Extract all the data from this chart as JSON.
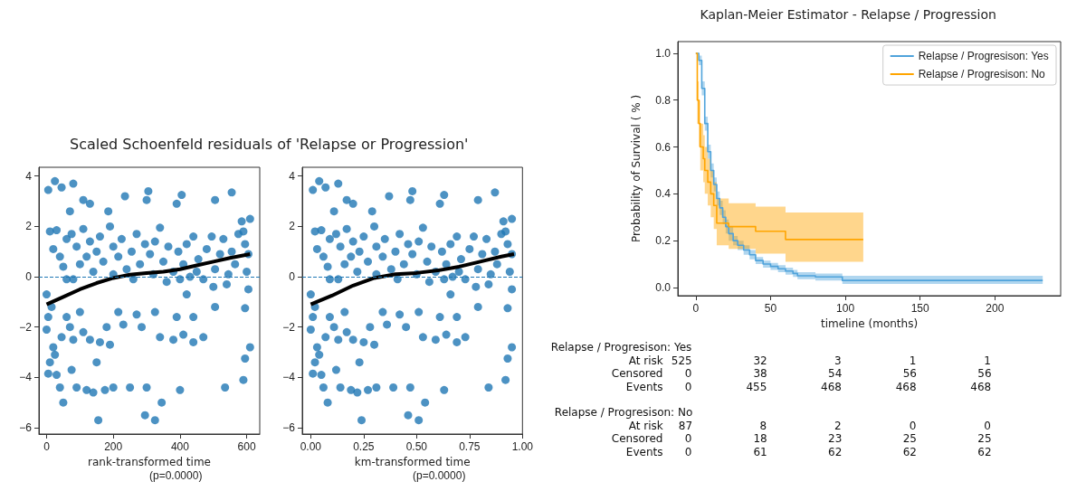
{
  "chart_data": [
    {
      "type": "scatter",
      "title": "Scaled Schoenfeld residuals of 'Relapse or Progression'",
      "xlabel": "rank-transformed time",
      "annotations": [
        "(p=0.0000)"
      ],
      "marker": "circle",
      "grid": false,
      "xlim": [
        -23,
        639
      ],
      "xticks": [
        0,
        200,
        400,
        600
      ],
      "ylim": [
        -6.25,
        4.35
      ],
      "yticks": [
        {
          "value": -6,
          "label": "−6"
        },
        {
          "value": -4,
          "label": "−4"
        },
        {
          "value": -2,
          "label": "−2"
        },
        0,
        2,
        4
      ],
      "ref_lines": [
        {
          "axis": "y",
          "value": 0,
          "color": "#1f77b4",
          "line_style": "dashed"
        }
      ],
      "series": [
        {
          "color": "#1f77b4",
          "x": [
            5,
            25,
            45,
            80,
            70,
            110,
            130,
            185,
            235,
            305,
            300,
            390,
            405,
            505,
            555,
            10,
            30,
            20,
            40,
            60,
            75,
            90,
            100,
            110,
            130,
            150,
            160,
            170,
            190,
            200,
            215,
            225,
            240,
            255,
            270,
            280,
            295,
            310,
            325,
            340,
            350,
            365,
            380,
            395,
            410,
            420,
            430,
            440,
            455,
            470,
            480,
            495,
            505,
            520,
            530,
            545,
            555,
            565,
            575,
            585,
            595,
            605,
            610,
            600,
            590,
            140,
            120,
            50,
            60,
            80,
            200,
            260,
            320,
            360,
            400,
            450,
            500,
            540,
            0,
            5,
            0,
            15,
            20,
            10,
            25,
            5,
            30,
            40,
            50,
            45,
            60,
            70,
            80,
            75,
            90,
            100,
            110,
            120,
            130,
            140,
            150,
            155,
            160,
            175,
            180,
            190,
            200,
            215,
            230,
            250,
            270,
            285,
            295,
            300,
            325,
            325,
            340,
            345,
            380,
            390,
            400,
            410,
            420,
            440,
            440,
            470,
            505,
            535,
            590,
            595,
            595,
            605,
            610
          ],
          "values": [
            3.45,
            3.8,
            3.55,
            3.7,
            2.6,
            3.05,
            2.9,
            2.6,
            3.2,
            3.4,
            3.05,
            2.9,
            3.25,
            3.05,
            3.35,
            1.8,
            1.85,
            1.1,
            0.8,
            1.5,
            1.7,
            1.2,
            0.5,
            1.9,
            1.4,
            1.0,
            1.6,
            0.6,
            2.0,
            1.2,
            0.8,
            1.5,
            0.3,
            1.0,
            1.7,
            0.5,
            1.3,
            0.9,
            1.4,
            1.95,
            0.6,
            1.2,
            0.2,
            1.0,
            0.5,
            1.3,
            0.0,
            1.6,
            0.7,
            -0.1,
            1.1,
            1.6,
            0.3,
            0.9,
            1.5,
            0.1,
            1.0,
            0.5,
            1.7,
            2.2,
            1.3,
            0.9,
            2.3,
            0.2,
            1.8,
            0.2,
            0.8,
            0.4,
            -0.1,
            -0.1,
            0.1,
            -0.1,
            0.1,
            -0.2,
            -0.1,
            0.2,
            -0.4,
            -0.3,
            -0.7,
            -1.6,
            -2.1,
            -1.2,
            -2.8,
            -3.4,
            -3.1,
            -3.85,
            -3.9,
            -4.4,
            -5.0,
            -2.4,
            -1.6,
            -2.0,
            -2.5,
            -3.7,
            -4.4,
            -1.4,
            -2.2,
            -4.5,
            -2.5,
            -4.6,
            -3.4,
            -5.7,
            -2.6,
            -4.5,
            -2.0,
            -2.7,
            -4.4,
            -1.4,
            -1.9,
            -4.4,
            -1.5,
            -2.0,
            -5.5,
            -4.4,
            -1.4,
            -5.7,
            -2.4,
            -5.0,
            -2.5,
            -1.6,
            -4.5,
            -2.3,
            -0.7,
            -1.6,
            -2.6,
            -2.4,
            -1.2,
            -4.4,
            -4.1,
            -3.25,
            -1.25,
            -0.5,
            -2.8
          ]
        },
        {
          "type": "line",
          "marker": "none",
          "color": "#000000",
          "x": [
            0,
            50,
            100,
            150,
            200,
            250,
            300,
            350,
            400,
            450,
            500,
            550,
            610
          ],
          "values": [
            -1.1,
            -0.8,
            -0.5,
            -0.25,
            -0.05,
            0.08,
            0.15,
            0.2,
            0.3,
            0.45,
            0.6,
            0.75,
            0.9
          ]
        }
      ]
    },
    {
      "type": "scatter",
      "xlabel": "km-transformed time",
      "annotations": [
        "(p=0.0000)"
      ],
      "marker": "circle",
      "grid": false,
      "xlim": [
        -0.04,
        1.0
      ],
      "xticks": [
        {
          "value": 0,
          "label": "0.00"
        },
        {
          "value": 0.25,
          "label": "0.25"
        },
        {
          "value": 0.5,
          "label": "0.50"
        },
        {
          "value": 0.75,
          "label": "0.75"
        },
        {
          "value": 1,
          "label": "1.00"
        }
      ],
      "ylim": [
        -6.25,
        4.35
      ],
      "yticks": [
        {
          "value": -6,
          "label": "−6"
        },
        {
          "value": -4,
          "label": "−4"
        },
        {
          "value": -2,
          "label": "−2"
        },
        0,
        2,
        4
      ],
      "ref_lines": [
        {
          "axis": "y",
          "value": 0,
          "color": "#1f77b4",
          "line_style": "dashed"
        }
      ],
      "series": [
        {
          "color": "#1f77b4",
          "x": [
            0.01,
            0.04,
            0.07,
            0.13,
            0.11,
            0.17,
            0.2,
            0.29,
            0.37,
            0.48,
            0.47,
            0.61,
            0.63,
            0.79,
            0.87,
            0.02,
            0.05,
            0.03,
            0.06,
            0.09,
            0.12,
            0.14,
            0.16,
            0.17,
            0.2,
            0.23,
            0.25,
            0.27,
            0.3,
            0.31,
            0.34,
            0.35,
            0.38,
            0.4,
            0.42,
            0.44,
            0.46,
            0.48,
            0.51,
            0.53,
            0.55,
            0.57,
            0.59,
            0.62,
            0.64,
            0.66,
            0.67,
            0.69,
            0.71,
            0.73,
            0.75,
            0.77,
            0.79,
            0.81,
            0.83,
            0.85,
            0.87,
            0.88,
            0.9,
            0.91,
            0.93,
            0.95,
            0.95,
            0.94,
            0.92,
            0.22,
            0.19,
            0.08,
            0.09,
            0.13,
            0.31,
            0.41,
            0.5,
            0.56,
            0.63,
            0.7,
            0.78,
            0.84,
            0,
            0.01,
            0,
            0.02,
            0.03,
            0.02,
            0.04,
            0.01,
            0.05,
            0.06,
            0.08,
            0.07,
            0.09,
            0.11,
            0.13,
            0.12,
            0.14,
            0.16,
            0.17,
            0.19,
            0.2,
            0.22,
            0.23,
            0.24,
            0.25,
            0.27,
            0.28,
            0.3,
            0.31,
            0.34,
            0.36,
            0.39,
            0.42,
            0.45,
            0.46,
            0.47,
            0.51,
            0.51,
            0.53,
            0.54,
            0.59,
            0.61,
            0.63,
            0.64,
            0.66,
            0.69,
            0.69,
            0.73,
            0.79,
            0.84,
            0.92,
            0.93,
            0.93,
            0.95,
            0.95
          ],
          "values": [
            3.45,
            3.8,
            3.55,
            3.7,
            2.6,
            3.05,
            2.9,
            2.6,
            3.2,
            3.4,
            3.05,
            2.9,
            3.25,
            3.05,
            3.35,
            1.8,
            1.85,
            1.1,
            0.8,
            1.5,
            1.7,
            1.2,
            0.5,
            1.9,
            1.4,
            1.0,
            1.6,
            0.6,
            2.0,
            1.2,
            0.8,
            1.5,
            0.3,
            1.0,
            1.7,
            0.5,
            1.3,
            0.9,
            1.4,
            1.95,
            0.6,
            1.2,
            0.2,
            1.0,
            0.5,
            1.3,
            0.0,
            1.6,
            0.7,
            -0.1,
            1.1,
            1.6,
            0.3,
            0.9,
            1.5,
            0.1,
            1.0,
            0.5,
            1.7,
            2.2,
            1.3,
            0.9,
            2.3,
            0.2,
            1.8,
            0.2,
            0.8,
            0.4,
            -0.1,
            -0.1,
            0.1,
            -0.1,
            0.1,
            -0.2,
            -0.1,
            0.2,
            -0.4,
            -0.3,
            -0.7,
            -1.6,
            -2.1,
            -1.2,
            -2.8,
            -3.4,
            -3.1,
            -3.85,
            -3.9,
            -4.4,
            -5.0,
            -2.4,
            -1.6,
            -2.0,
            -2.5,
            -3.7,
            -4.4,
            -1.4,
            -2.2,
            -4.5,
            -2.5,
            -4.6,
            -3.4,
            -5.7,
            -2.6,
            -4.5,
            -2.0,
            -2.7,
            -4.4,
            -1.4,
            -1.9,
            -4.4,
            -1.5,
            -2.0,
            -5.5,
            -4.4,
            -1.4,
            -5.7,
            -2.4,
            -5.0,
            -2.5,
            -1.6,
            -4.5,
            -2.3,
            -0.7,
            -1.6,
            -2.6,
            -2.4,
            -1.2,
            -4.4,
            -4.1,
            -3.25,
            -1.25,
            -0.5,
            -2.8
          ]
        },
        {
          "type": "line",
          "marker": "none",
          "color": "#000000",
          "x": [
            0,
            0.1,
            0.2,
            0.3,
            0.4,
            0.5,
            0.6,
            0.7,
            0.8,
            0.9,
            0.96
          ],
          "values": [
            -1.1,
            -0.75,
            -0.35,
            -0.05,
            0.1,
            0.15,
            0.25,
            0.4,
            0.6,
            0.8,
            0.9
          ]
        }
      ]
    },
    {
      "type": "step",
      "title": "Kaplan-Meier Estimator - Relapse / Progression",
      "xlabel": "timeline (months)",
      "ylabel": "Probability of Survival ( % )",
      "grid": false,
      "legend": "top right",
      "xlim": [
        -12,
        244
      ],
      "xticks": [
        0,
        50,
        100,
        150,
        200
      ],
      "ylim": [
        -0.035,
        1.05
      ],
      "yticks": [
        {
          "value": 0,
          "label": "0.0"
        },
        {
          "value": 0.2,
          "label": "0.2"
        },
        {
          "value": 0.4,
          "label": "0.4"
        },
        {
          "value": 0.6,
          "label": "0.6"
        },
        {
          "value": 0.8,
          "label": "0.8"
        },
        {
          "value": 1,
          "label": "1.0"
        }
      ],
      "annotations": [
        "Relapse / Progresison: Yes",
        "At risk  525  32  3  1  1",
        "Censored  0  38  54  56  56",
        "Events  0  455  468  468  468",
        "Relapse / Progresison: No",
        "At risk  87  8  2  0  0",
        "Censored  0  18  23  25  25",
        "Events  0  61  62  62  62"
      ],
      "series": [
        {
          "name": "Relapse / Progresison: Yes",
          "color": "#4fa3db",
          "x": [
            0,
            2,
            4,
            6,
            8,
            10,
            12,
            14,
            16,
            18,
            20,
            22,
            25,
            28,
            32,
            36,
            40,
            45,
            50,
            55,
            60,
            65,
            68,
            80,
            98,
            232
          ],
          "values": [
            1.0,
            0.97,
            0.85,
            0.7,
            0.58,
            0.5,
            0.44,
            0.38,
            0.34,
            0.3,
            0.26,
            0.23,
            0.2,
            0.18,
            0.16,
            0.14,
            0.115,
            0.1,
            0.09,
            0.08,
            0.07,
            0.06,
            0.05,
            0.045,
            0.03,
            0.03
          ],
          "lower": [
            1.0,
            0.95,
            0.82,
            0.67,
            0.55,
            0.47,
            0.41,
            0.35,
            0.31,
            0.27,
            0.23,
            0.2,
            0.18,
            0.16,
            0.14,
            0.12,
            0.1,
            0.085,
            0.075,
            0.065,
            0.055,
            0.045,
            0.035,
            0.03,
            0.015,
            0.015
          ],
          "upper": [
            1.0,
            0.99,
            0.88,
            0.73,
            0.61,
            0.53,
            0.47,
            0.41,
            0.37,
            0.33,
            0.29,
            0.26,
            0.22,
            0.2,
            0.18,
            0.16,
            0.13,
            0.115,
            0.105,
            0.095,
            0.085,
            0.075,
            0.065,
            0.06,
            0.05,
            0.05
          ]
        },
        {
          "name": "Relapse / Progresison: No",
          "color": "#ffa500",
          "x": [
            0,
            1,
            2,
            3,
            5,
            6,
            8,
            10,
            12,
            14,
            22,
            40,
            60,
            112
          ],
          "values": [
            1.0,
            0.8,
            0.7,
            0.6,
            0.55,
            0.5,
            0.45,
            0.4,
            0.35,
            0.275,
            0.26,
            0.24,
            0.205,
            0.205
          ],
          "lower": [
            1.0,
            0.7,
            0.6,
            0.5,
            0.45,
            0.4,
            0.35,
            0.3,
            0.25,
            0.18,
            0.165,
            0.145,
            0.11,
            0.11
          ],
          "upper": [
            1.0,
            0.88,
            0.8,
            0.7,
            0.65,
            0.6,
            0.55,
            0.5,
            0.45,
            0.38,
            0.36,
            0.345,
            0.32,
            0.32
          ]
        }
      ]
    }
  ]
}
